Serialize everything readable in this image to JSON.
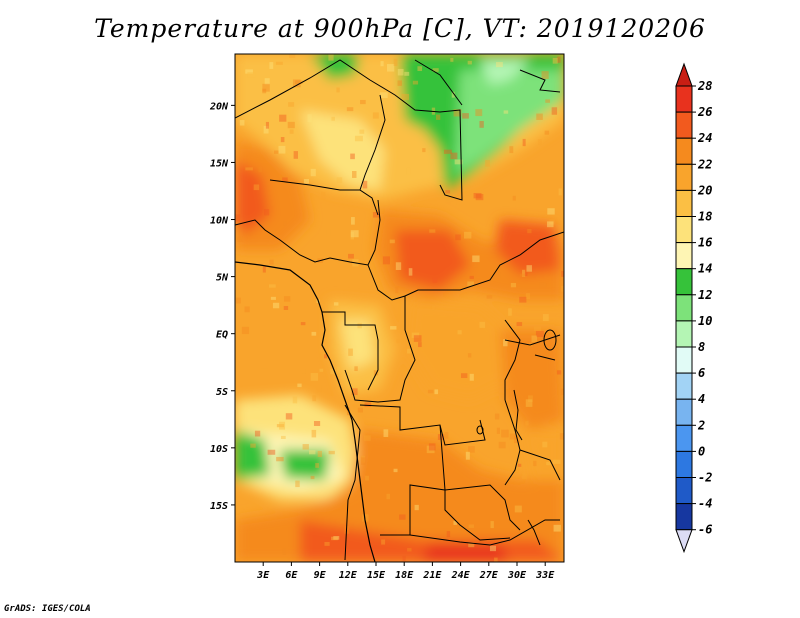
{
  "title": "Temperature at 900hPa [C], VT: 2019120206",
  "credit": "GrADS: IGES/COLA",
  "map": {
    "lat_ticks": [
      "20N",
      "15N",
      "10N",
      "5N",
      "EQ",
      "5S",
      "10S",
      "15S"
    ],
    "lon_ticks": [
      "3E",
      "6E",
      "9E",
      "12E",
      "15E",
      "18E",
      "21E",
      "24E",
      "27E",
      "30E",
      "33E"
    ],
    "lon_range": [
      0,
      35
    ],
    "lat_range": [
      -20,
      24.5
    ]
  },
  "colorbar": {
    "labels": [
      "28",
      "26",
      "24",
      "22",
      "20",
      "18",
      "16",
      "14",
      "12",
      "10",
      "8",
      "6",
      "4",
      "2",
      "0",
      "-2",
      "-4",
      "-6"
    ],
    "colors": [
      "#e8321e",
      "#f25a1e",
      "#f58a1e",
      "#f9a42c",
      "#fbbf44",
      "#fde27a",
      "#fef5b4",
      "#36c23a",
      "#7de27a",
      "#b4f5b4",
      "#e1fbf6",
      "#a2d3f5",
      "#78b4f0",
      "#4b96f0",
      "#2d78e1",
      "#1f5ac8",
      "#1637a0",
      "#0a1a6e"
    ],
    "over_color": "#c81e14",
    "under_color": "#dcdcf5"
  }
}
